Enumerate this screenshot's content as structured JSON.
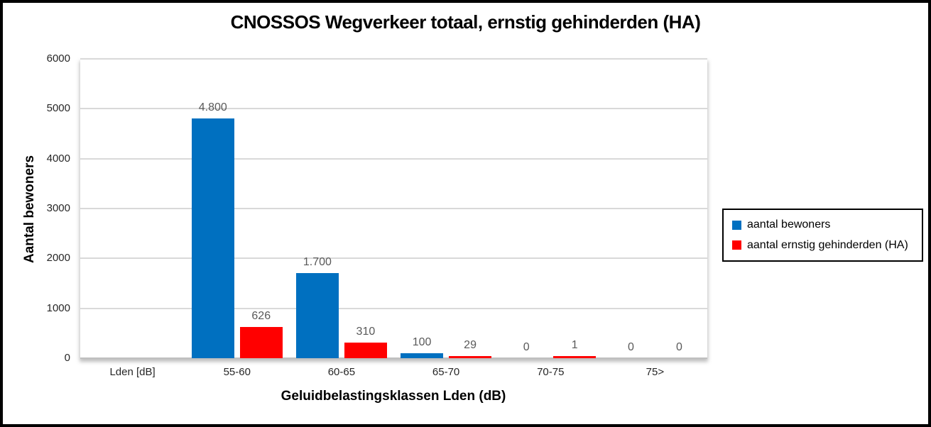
{
  "chart_data": {
    "type": "bar",
    "title": "CNOSSOS Wegverkeer totaal, ernstig gehinderden (HA)",
    "xlabel": "Geluidbelastingsklassen Lden (dB)",
    "ylabel": "Aantal bewoners",
    "ylim": [
      0,
      6000
    ],
    "ytick_step": 1000,
    "grid": true,
    "legend_position": "right",
    "categories": [
      "Lden [dB]",
      "55-60",
      "60-65",
      "65-70",
      "70-75",
      "75>"
    ],
    "series": [
      {
        "name": "aantal bewoners",
        "color": "#0070C0",
        "values": [
          null,
          4800,
          1700,
          100,
          0,
          0
        ],
        "labels": [
          "",
          "4.800",
          "1.700",
          "100",
          "0",
          "0"
        ]
      },
      {
        "name": "aantal ernstig gehinderden (HA)",
        "color": "#FF0000",
        "values": [
          null,
          626,
          310,
          29,
          1,
          0
        ],
        "labels": [
          "",
          "626",
          "310",
          "29",
          "1",
          "0"
        ]
      }
    ]
  },
  "colors": {
    "gridline": "#D9D9D9",
    "axis_line": "#BFBFBF",
    "data_label": "#595959",
    "tick_label": "#262626"
  }
}
